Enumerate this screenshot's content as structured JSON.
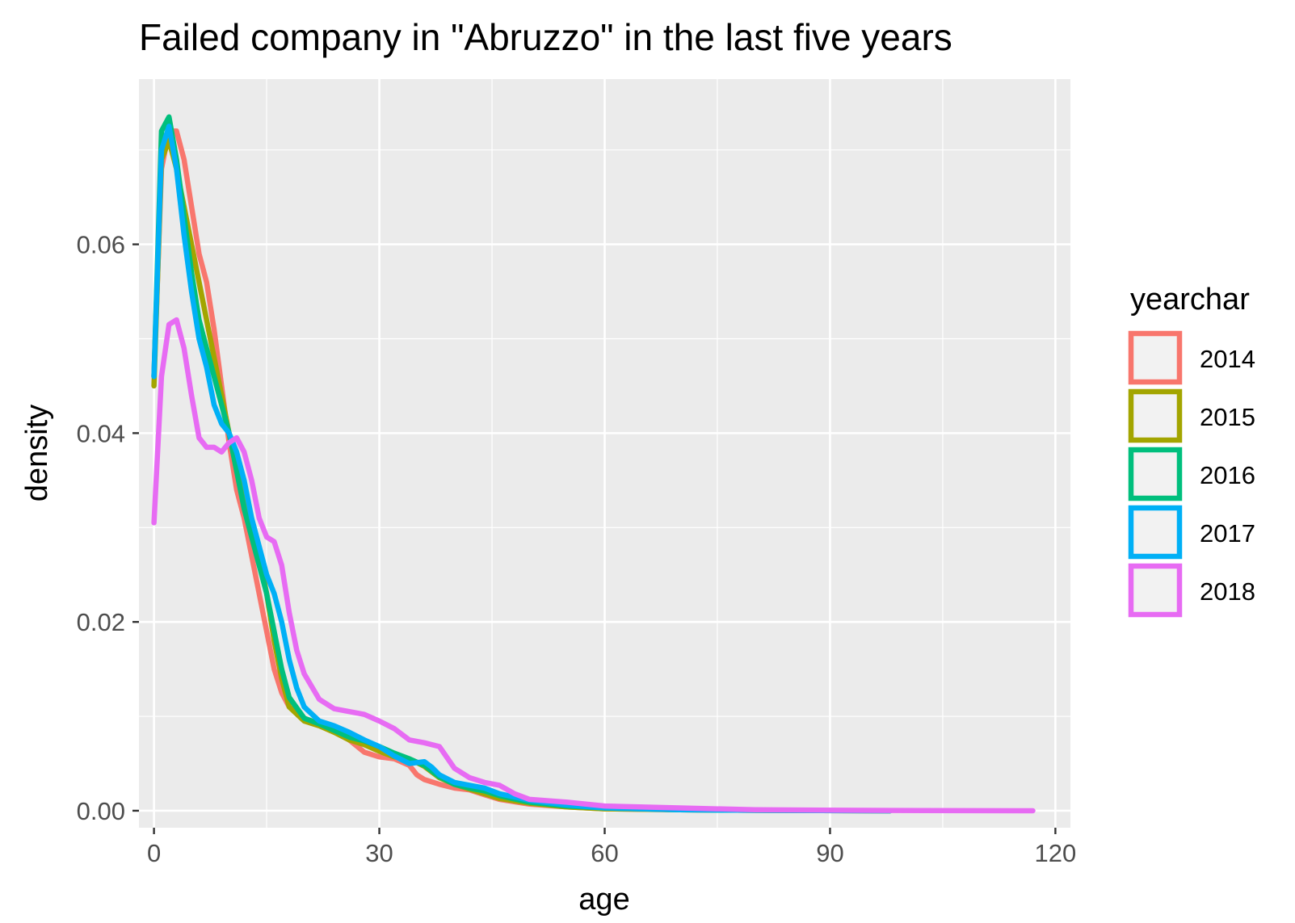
{
  "chart_data": {
    "type": "line",
    "title": "Failed company in \"Abruzzo\" in the last five years",
    "xlabel": "age",
    "ylabel": "density",
    "xlim": [
      -2,
      122
    ],
    "ylim": [
      -0.0018,
      0.0775
    ],
    "x_ticks": [
      0,
      30,
      60,
      90,
      120
    ],
    "x_tick_labels": [
      "0",
      "30",
      "60",
      "90",
      "120"
    ],
    "y_ticks": [
      0.0,
      0.02,
      0.04,
      0.06
    ],
    "y_tick_labels": [
      "0.00",
      "0.02",
      "0.04",
      "0.06"
    ],
    "grid": true,
    "legend": {
      "title": "yearchar",
      "position": "right"
    },
    "series": [
      {
        "name": "2014",
        "color": "#F8766D",
        "points": [
          [
            0,
            0.046
          ],
          [
            1,
            0.068
          ],
          [
            2,
            0.072
          ],
          [
            3,
            0.072
          ],
          [
            4,
            0.069
          ],
          [
            5,
            0.064
          ],
          [
            6,
            0.059
          ],
          [
            7,
            0.056
          ],
          [
            8,
            0.051
          ],
          [
            9,
            0.045
          ],
          [
            10,
            0.039
          ],
          [
            11,
            0.034
          ],
          [
            12,
            0.031
          ],
          [
            13,
            0.027
          ],
          [
            14,
            0.023
          ],
          [
            15,
            0.019
          ],
          [
            16,
            0.015
          ],
          [
            17,
            0.0125
          ],
          [
            18,
            0.011
          ],
          [
            20,
            0.0098
          ],
          [
            22,
            0.0092
          ],
          [
            24,
            0.0085
          ],
          [
            26,
            0.0075
          ],
          [
            28,
            0.0062
          ],
          [
            30,
            0.0057
          ],
          [
            32,
            0.0055
          ],
          [
            34,
            0.0048
          ],
          [
            35,
            0.0038
          ],
          [
            36,
            0.0033
          ],
          [
            38,
            0.0028
          ],
          [
            40,
            0.0024
          ],
          [
            42,
            0.0022
          ],
          [
            44,
            0.0017
          ],
          [
            46,
            0.0012
          ],
          [
            50,
            0.0007
          ],
          [
            55,
            0.0004
          ],
          [
            60,
            0.0002
          ],
          [
            70,
            0.0001
          ],
          [
            80,
            5e-05
          ],
          [
            98,
            0.0
          ]
        ]
      },
      {
        "name": "2015",
        "color": "#A3A500",
        "points": [
          [
            0,
            0.045
          ],
          [
            1,
            0.069
          ],
          [
            2,
            0.071
          ],
          [
            3,
            0.068
          ],
          [
            4,
            0.064
          ],
          [
            5,
            0.06
          ],
          [
            6,
            0.056
          ],
          [
            7,
            0.052
          ],
          [
            8,
            0.048
          ],
          [
            9,
            0.044
          ],
          [
            10,
            0.04
          ],
          [
            11,
            0.036
          ],
          [
            12,
            0.033
          ],
          [
            13,
            0.03
          ],
          [
            14,
            0.027
          ],
          [
            15,
            0.023
          ],
          [
            16,
            0.018
          ],
          [
            17,
            0.014
          ],
          [
            18,
            0.011
          ],
          [
            20,
            0.0095
          ],
          [
            22,
            0.009
          ],
          [
            24,
            0.0083
          ],
          [
            26,
            0.0075
          ],
          [
            28,
            0.007
          ],
          [
            30,
            0.0063
          ],
          [
            32,
            0.0057
          ],
          [
            34,
            0.0055
          ],
          [
            36,
            0.0047
          ],
          [
            38,
            0.0035
          ],
          [
            40,
            0.0028
          ],
          [
            42,
            0.0023
          ],
          [
            44,
            0.0018
          ],
          [
            46,
            0.0013
          ],
          [
            50,
            0.0008
          ],
          [
            55,
            0.0004
          ],
          [
            60,
            0.0002
          ],
          [
            70,
            0.0001
          ],
          [
            80,
            5e-05
          ],
          [
            98,
            0.0
          ]
        ]
      },
      {
        "name": "2016",
        "color": "#00BF7D",
        "points": [
          [
            0,
            0.046
          ],
          [
            1,
            0.072
          ],
          [
            2,
            0.0735
          ],
          [
            3,
            0.069
          ],
          [
            4,
            0.063
          ],
          [
            5,
            0.057
          ],
          [
            6,
            0.052
          ],
          [
            7,
            0.049
          ],
          [
            8,
            0.046
          ],
          [
            9,
            0.043
          ],
          [
            10,
            0.04
          ],
          [
            11,
            0.036
          ],
          [
            12,
            0.032
          ],
          [
            13,
            0.029
          ],
          [
            14,
            0.026
          ],
          [
            15,
            0.023
          ],
          [
            16,
            0.019
          ],
          [
            17,
            0.015
          ],
          [
            18,
            0.012
          ],
          [
            20,
            0.0098
          ],
          [
            22,
            0.0092
          ],
          [
            24,
            0.0085
          ],
          [
            26,
            0.0078
          ],
          [
            28,
            0.0074
          ],
          [
            30,
            0.0068
          ],
          [
            32,
            0.0061
          ],
          [
            34,
            0.0055
          ],
          [
            36,
            0.0048
          ],
          [
            38,
            0.0036
          ],
          [
            40,
            0.0028
          ],
          [
            42,
            0.0024
          ],
          [
            44,
            0.0021
          ],
          [
            46,
            0.0016
          ],
          [
            50,
            0.0009
          ],
          [
            55,
            0.0005
          ],
          [
            60,
            0.0003
          ],
          [
            70,
            0.0001
          ],
          [
            80,
            5e-05
          ],
          [
            98,
            0.0
          ]
        ]
      },
      {
        "name": "2017",
        "color": "#00B0F6",
        "points": [
          [
            0,
            0.046
          ],
          [
            1,
            0.07
          ],
          [
            2,
            0.0725
          ],
          [
            3,
            0.068
          ],
          [
            4,
            0.061
          ],
          [
            5,
            0.055
          ],
          [
            6,
            0.05
          ],
          [
            7,
            0.047
          ],
          [
            8,
            0.043
          ],
          [
            9,
            0.041
          ],
          [
            10,
            0.04
          ],
          [
            11,
            0.038
          ],
          [
            12,
            0.035
          ],
          [
            13,
            0.031
          ],
          [
            14,
            0.028
          ],
          [
            15,
            0.025
          ],
          [
            16,
            0.023
          ],
          [
            17,
            0.02
          ],
          [
            18,
            0.016
          ],
          [
            19,
            0.013
          ],
          [
            20,
            0.011
          ],
          [
            22,
            0.0095
          ],
          [
            24,
            0.009
          ],
          [
            26,
            0.0083
          ],
          [
            28,
            0.0075
          ],
          [
            30,
            0.0068
          ],
          [
            32,
            0.0058
          ],
          [
            34,
            0.005
          ],
          [
            36,
            0.0052
          ],
          [
            37,
            0.0046
          ],
          [
            38,
            0.0038
          ],
          [
            40,
            0.003
          ],
          [
            42,
            0.0027
          ],
          [
            44,
            0.0024
          ],
          [
            46,
            0.0018
          ],
          [
            50,
            0.0011
          ],
          [
            55,
            0.0006
          ],
          [
            60,
            0.0003
          ],
          [
            70,
            0.0001
          ],
          [
            80,
            5e-05
          ],
          [
            98,
            0.0
          ]
        ]
      },
      {
        "name": "2018",
        "color": "#E76BF3",
        "points": [
          [
            0,
            0.0305
          ],
          [
            1,
            0.046
          ],
          [
            2,
            0.0515
          ],
          [
            3,
            0.052
          ],
          [
            4,
            0.049
          ],
          [
            5,
            0.044
          ],
          [
            6,
            0.0395
          ],
          [
            7,
            0.0385
          ],
          [
            8,
            0.0385
          ],
          [
            9,
            0.038
          ],
          [
            10,
            0.039
          ],
          [
            11,
            0.0395
          ],
          [
            12,
            0.038
          ],
          [
            13,
            0.035
          ],
          [
            14,
            0.031
          ],
          [
            15,
            0.029
          ],
          [
            16,
            0.0285
          ],
          [
            17,
            0.026
          ],
          [
            18,
            0.021
          ],
          [
            19,
            0.017
          ],
          [
            20,
            0.0145
          ],
          [
            22,
            0.0118
          ],
          [
            24,
            0.0108
          ],
          [
            26,
            0.0105
          ],
          [
            28,
            0.0102
          ],
          [
            30,
            0.0095
          ],
          [
            32,
            0.0087
          ],
          [
            34,
            0.0075
          ],
          [
            36,
            0.0072
          ],
          [
            38,
            0.0068
          ],
          [
            40,
            0.0045
          ],
          [
            42,
            0.0035
          ],
          [
            44,
            0.003
          ],
          [
            46,
            0.0027
          ],
          [
            48,
            0.0018
          ],
          [
            50,
            0.0012
          ],
          [
            55,
            0.0009
          ],
          [
            60,
            0.0005
          ],
          [
            70,
            0.0003
          ],
          [
            80,
            0.0001
          ],
          [
            98,
            3e-05
          ],
          [
            117,
            0.0
          ]
        ]
      }
    ]
  }
}
